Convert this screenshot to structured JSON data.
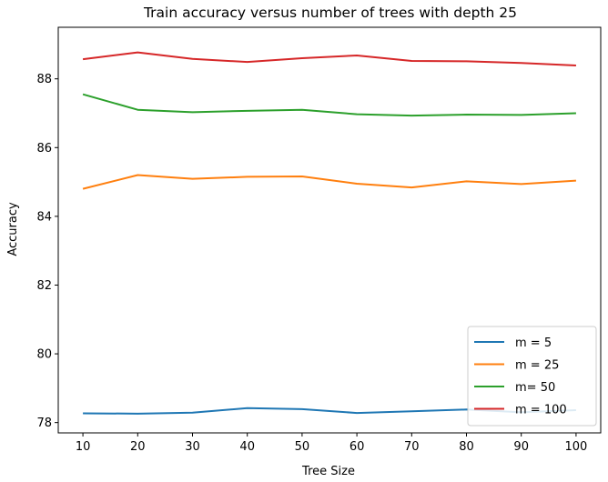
{
  "chart_data": {
    "type": "line",
    "title": "Train accuracy versus number of trees with depth 25",
    "xlabel": "Tree Size",
    "ylabel": "Accuracy",
    "x": [
      10,
      20,
      30,
      40,
      50,
      60,
      70,
      80,
      90,
      100
    ],
    "xticks": [
      "10",
      "20",
      "30",
      "40",
      "50",
      "60",
      "70",
      "80",
      "90",
      "100"
    ],
    "yticks": [
      "78",
      "80",
      "82",
      "84",
      "86",
      "88"
    ],
    "xlim": [
      5.5,
      104.5
    ],
    "ylim": [
      77.7,
      89.5
    ],
    "legend_position": "lower-right",
    "grid": false,
    "series": [
      {
        "name": "m = 5",
        "color": "#1f77b4",
        "values": [
          78.27,
          78.26,
          78.29,
          78.42,
          78.39,
          78.28,
          78.33,
          78.38,
          78.3,
          78.36
        ]
      },
      {
        "name": "m = 25",
        "color": "#ff7f0e",
        "values": [
          84.8,
          85.2,
          85.09,
          85.15,
          85.16,
          84.95,
          84.84,
          85.02,
          84.94,
          85.04
        ]
      },
      {
        "name": " m= 50",
        "color": "#2ca02c",
        "values": [
          87.55,
          87.1,
          87.03,
          87.07,
          87.1,
          86.97,
          86.93,
          86.96,
          86.95,
          87.0
        ]
      },
      {
        "name": " m = 100",
        "color": "#d62728",
        "values": [
          88.57,
          88.77,
          88.58,
          88.49,
          88.6,
          88.68,
          88.52,
          88.51,
          88.46,
          88.39
        ]
      }
    ]
  }
}
